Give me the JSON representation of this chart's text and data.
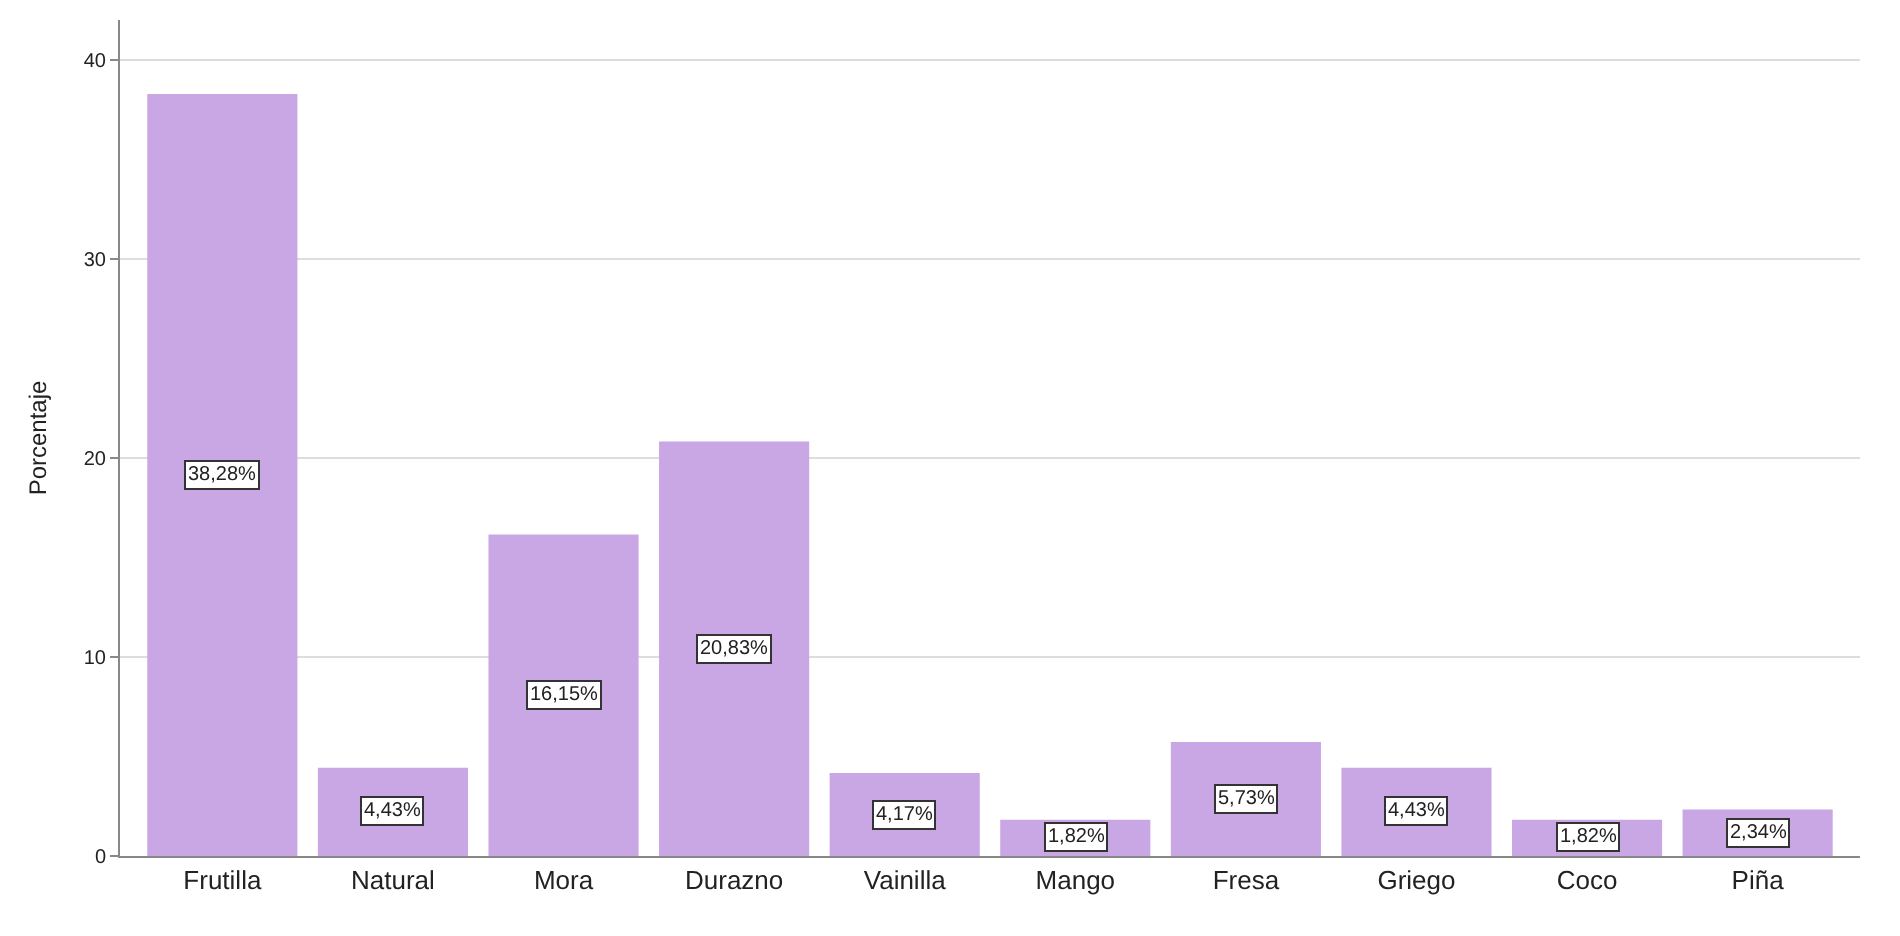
{
  "chart_data": {
    "type": "bar",
    "ylabel": "Porcentaje",
    "categories": [
      "Frutilla",
      "Natural",
      "Mora",
      "Durazno",
      "Vainilla",
      "Mango",
      "Fresa",
      "Griego",
      "Coco",
      "Piña"
    ],
    "values": [
      38.28,
      4.43,
      16.15,
      20.83,
      4.17,
      1.82,
      5.73,
      4.43,
      1.82,
      2.34
    ],
    "value_labels": [
      "38,28%",
      "4,43%",
      "16,15%",
      "20,83%",
      "4,17%",
      "1,82%",
      "5,73%",
      "4,43%",
      "1,82%",
      "2,34%"
    ],
    "color": "#c9a6e4",
    "ylim": [
      0,
      42
    ],
    "yticks": [
      0,
      10,
      20,
      30,
      40
    ],
    "grid": "y"
  }
}
